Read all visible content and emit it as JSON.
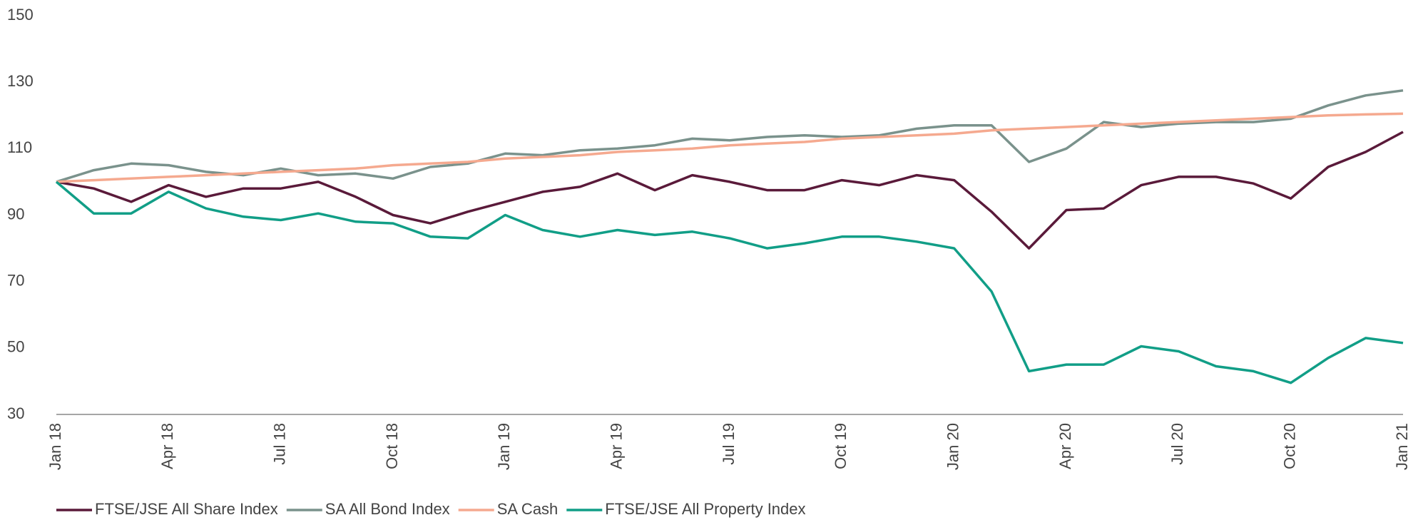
{
  "chart_data": {
    "type": "line",
    "categories": [
      "Jan 18",
      null,
      null,
      "Apr 18",
      null,
      null,
      "Jul 18",
      null,
      null,
      "Oct 18",
      null,
      null,
      "Jan 19",
      null,
      null,
      "Apr 19",
      null,
      null,
      "Jul 19",
      null,
      null,
      "Oct 19",
      null,
      null,
      "Jan 20",
      null,
      null,
      "Apr 20",
      null,
      null,
      "Jul 20",
      null,
      null,
      "Oct 20",
      null,
      null,
      "Jan 21"
    ],
    "ylim": [
      30,
      150
    ],
    "yticks": [
      30,
      50,
      70,
      90,
      110,
      130,
      150
    ],
    "grid": false,
    "legend": "bottom-left",
    "series": [
      {
        "name": "FTSE/JSE All Share Index",
        "color": "#5a1a3a",
        "values": [
          100,
          98,
          94,
          99,
          95.5,
          98,
          98,
          100,
          95.5,
          90,
          87.5,
          91,
          94,
          97,
          98.5,
          102.5,
          97.5,
          102,
          100,
          97.5,
          97.5,
          100.5,
          99,
          102,
          100.5,
          91,
          80,
          91.5,
          92,
          99,
          101.5,
          101.5,
          99.5,
          95,
          104.5,
          109,
          115
        ]
      },
      {
        "name": "SA All Bond Index",
        "color": "#7a928c",
        "values": [
          100,
          103.5,
          105.5,
          105,
          103,
          102,
          104,
          102,
          102.5,
          101,
          104.5,
          105.5,
          108.5,
          108,
          109.5,
          110,
          111,
          113,
          112.5,
          113.5,
          114,
          113.5,
          114,
          116,
          117,
          117,
          106,
          110,
          118,
          116.5,
          117.5,
          118,
          118,
          119,
          123,
          126,
          127.5
        ]
      },
      {
        "name": "SA Cash",
        "color": "#f5a98f",
        "values": [
          100,
          100.5,
          101,
          101.5,
          102,
          102.5,
          103,
          103.5,
          104,
          105,
          105.5,
          106,
          107,
          107.5,
          108,
          109,
          109.5,
          110,
          111,
          111.5,
          112,
          113,
          113.5,
          114,
          114.5,
          115.5,
          116,
          116.5,
          117,
          117.5,
          118,
          118.5,
          119,
          119.5,
          120,
          120.3,
          120.5
        ]
      },
      {
        "name": "FTSE/JSE All Property Index",
        "color": "#119e87",
        "values": [
          100,
          90.5,
          90.5,
          97,
          92,
          89.5,
          88.5,
          90.5,
          88,
          87.5,
          83.5,
          83,
          90,
          85.5,
          83.5,
          85.5,
          84,
          85,
          83,
          80,
          81.5,
          83.5,
          83.5,
          82,
          80,
          67,
          43,
          45,
          45,
          50.5,
          49,
          44.5,
          43,
          39.5,
          47,
          53,
          51.5
        ]
      }
    ]
  }
}
